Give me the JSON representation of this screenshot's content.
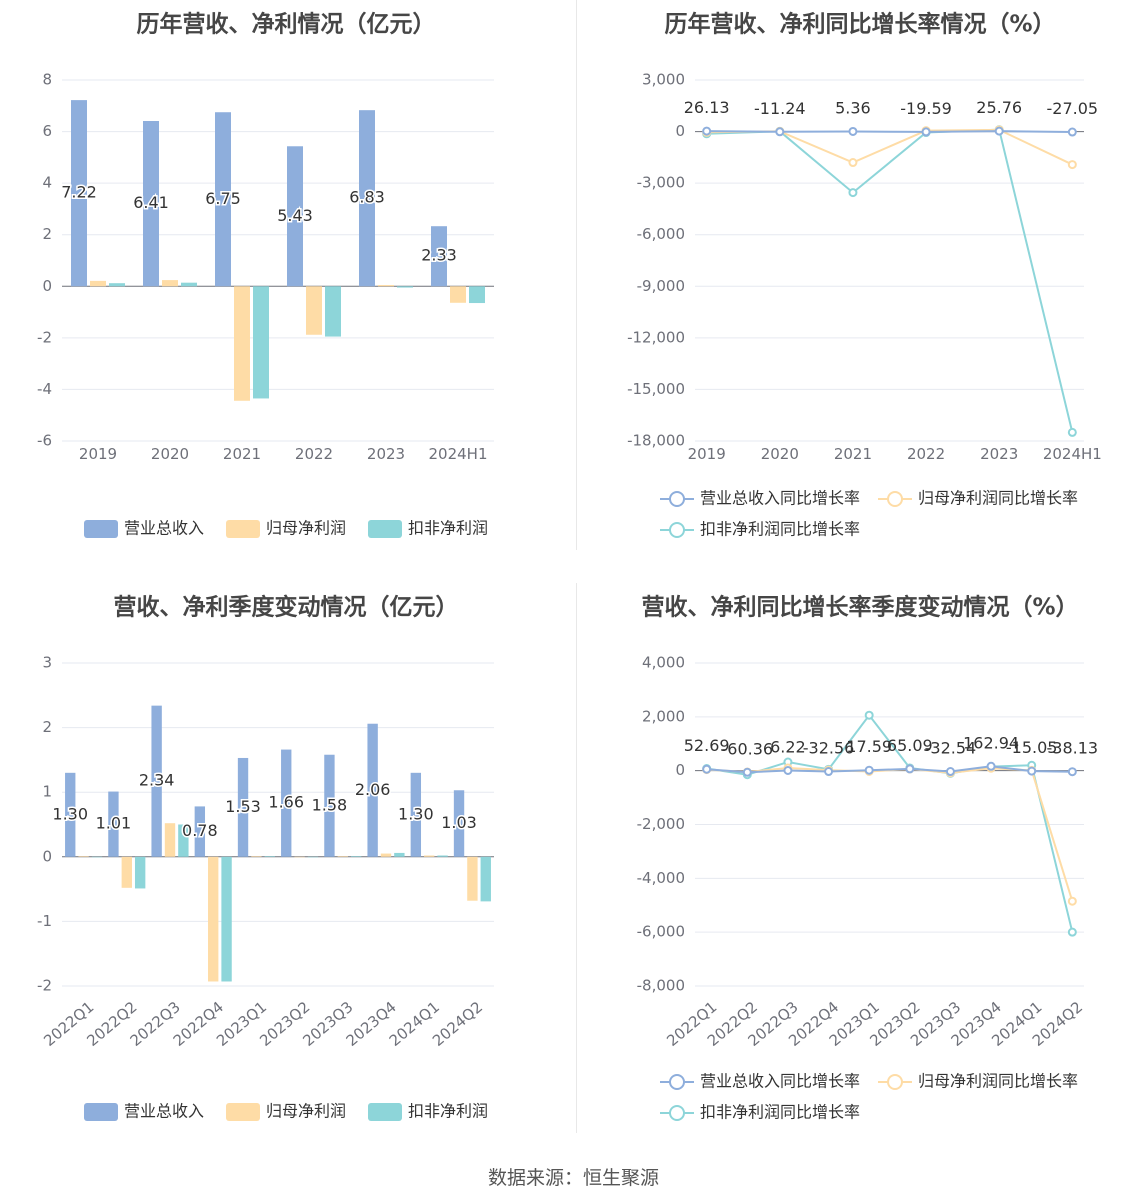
{
  "footer": {
    "source": "数据来源：恒生聚源"
  },
  "colors": {
    "revenue": "#8eaedc",
    "parent_profit": "#fedca6",
    "deducted_profit": "#8dd5d9",
    "grid": "#e6e9f0",
    "axis_text": "#6e7079",
    "title": "#464646"
  },
  "chart_data": [
    {
      "id": "annual-bars",
      "type": "bar",
      "title": "历年营收、净利情况（亿元）",
      "categories": [
        "2019",
        "2020",
        "2021",
        "2022",
        "2023",
        "2024H1"
      ],
      "ylim": [
        -6,
        8
      ],
      "yticks": [
        8,
        6,
        4,
        2,
        0,
        -2,
        -4,
        -6
      ],
      "ytick_labels": [
        "8",
        "6",
        "4",
        "2",
        "0",
        "-2",
        "-4",
        "-6"
      ],
      "grid": true,
      "legend_position": "bottom",
      "series": [
        {
          "name": "营业总收入",
          "color": "#8eaedc",
          "values": [
            7.22,
            6.41,
            6.75,
            5.43,
            6.83,
            2.33
          ],
          "labels": [
            "7.22",
            "6.41",
            "6.75",
            "5.43",
            "6.83",
            "2.33"
          ]
        },
        {
          "name": "归母净利润",
          "color": "#fedca6",
          "values": [
            0.21,
            0.24,
            -4.44,
            -1.88,
            0.05,
            -0.64
          ]
        },
        {
          "name": "扣非净利润",
          "color": "#8dd5d9",
          "values": [
            0.12,
            0.14,
            -4.35,
            -1.95,
            -0.05,
            -0.65
          ]
        }
      ]
    },
    {
      "id": "annual-growth",
      "type": "line",
      "title": "历年营收、净利同比增长率情况（%）",
      "categories": [
        "2019",
        "2020",
        "2021",
        "2022",
        "2023",
        "2024H1"
      ],
      "ylim": [
        -18000,
        3000
      ],
      "yticks": [
        3000,
        0,
        -3000,
        -6000,
        -9000,
        -12000,
        -15000,
        -18000
      ],
      "ytick_labels": [
        "3,000",
        "0",
        "-3,000",
        "-6,000",
        "-9,000",
        "-12,000",
        "-15,000",
        "-18,000"
      ],
      "grid": true,
      "legend_position": "bottom",
      "series": [
        {
          "name": "营业总收入同比增长率",
          "color": "#8eaedc",
          "values": [
            26.13,
            -11.24,
            5.36,
            -19.59,
            25.76,
            -27.05
          ],
          "labels": [
            "26.13",
            "-11.24",
            "5.36",
            "-19.59",
            "25.76",
            "-27.05"
          ]
        },
        {
          "name": "归母净利润同比增长率",
          "color": "#fedca6",
          "values": [
            -40,
            14,
            -1800,
            58,
            100,
            -1920
          ]
        },
        {
          "name": "扣非净利润同比增长率",
          "color": "#8dd5d9",
          "values": [
            -130,
            15,
            -3550,
            -55,
            110,
            -17500
          ]
        }
      ]
    },
    {
      "id": "quarterly-bars",
      "type": "bar",
      "title": "营收、净利季度变动情况（亿元）",
      "categories": [
        "2022Q1",
        "2022Q2",
        "2022Q3",
        "2022Q4",
        "2023Q1",
        "2023Q2",
        "2023Q3",
        "2023Q4",
        "2024Q1",
        "2024Q2"
      ],
      "ylim": [
        -2,
        3
      ],
      "yticks": [
        3,
        2,
        1,
        0,
        -1,
        -2
      ],
      "ytick_labels": [
        "3",
        "2",
        "1",
        "0",
        "-1",
        "-2"
      ],
      "grid": true,
      "legend_position": "bottom",
      "series": [
        {
          "name": "营业总收入",
          "color": "#8eaedc",
          "values": [
            1.3,
            1.01,
            2.34,
            0.78,
            1.53,
            1.66,
            1.58,
            2.06,
            1.3,
            1.03
          ],
          "labels": [
            "1.30",
            "1.01",
            "2.34",
            "0.78",
            "1.53",
            "1.66",
            "1.58",
            "2.06",
            "1.30",
            "1.03"
          ]
        },
        {
          "name": "归母净利润",
          "color": "#fedca6",
          "values": [
            0.01,
            -0.48,
            0.52,
            -1.93,
            0.01,
            0.0,
            0.01,
            0.05,
            0.02,
            -0.68
          ]
        },
        {
          "name": "扣非净利润",
          "color": "#8dd5d9",
          "values": [
            0.0,
            -0.49,
            0.5,
            -1.93,
            0.01,
            0.0,
            0.01,
            0.06,
            0.02,
            -0.69
          ]
        }
      ]
    },
    {
      "id": "quarterly-growth",
      "type": "line",
      "title": "营收、净利同比增长率季度变动情况（%）",
      "categories": [
        "2022Q1",
        "2022Q2",
        "2022Q3",
        "2022Q4",
        "2023Q1",
        "2023Q2",
        "2023Q3",
        "2023Q4",
        "2024Q1",
        "2024Q2"
      ],
      "ylim": [
        -8000,
        4000
      ],
      "yticks": [
        4000,
        2000,
        0,
        -2000,
        -4000,
        -6000,
        -8000
      ],
      "ytick_labels": [
        "4,000",
        "2,000",
        "0",
        "-2,000",
        "-4,000",
        "-6,000",
        "-8,000"
      ],
      "grid": true,
      "legend_position": "bottom",
      "rotate_xlabels": true,
      "series": [
        {
          "name": "营业总收入同比增长率",
          "color": "#8eaedc",
          "values": [
            52.69,
            -60.36,
            6.22,
            -32.56,
            17.59,
            65.09,
            -32.54,
            162.94,
            -15.05,
            -38.13
          ],
          "labels": [
            "52.69",
            "-60.36",
            "6.22",
            "-32.56",
            "17.59",
            "65.09",
            "-32.54",
            "162.94",
            "-15.05",
            "-38.13"
          ]
        },
        {
          "name": "归母净利润同比增长率",
          "color": "#fedca6",
          "values": [
            40,
            -50,
            100,
            20,
            -30,
            60,
            -80,
            90,
            10,
            -4850
          ]
        },
        {
          "name": "扣非净利润同比增长率",
          "color": "#8dd5d9",
          "values": [
            80,
            -150,
            320,
            50,
            2060,
            100,
            -100,
            150,
            200,
            -6000
          ]
        }
      ]
    }
  ]
}
